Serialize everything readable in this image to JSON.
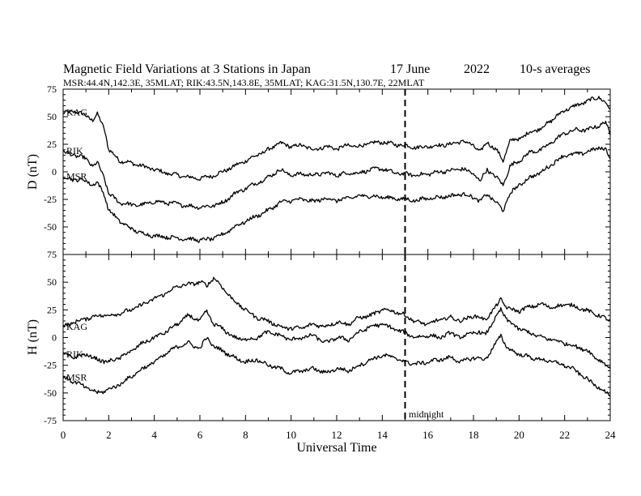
{
  "title": {
    "main": "Magnetic Field Variations at 3 Stations in Japan",
    "date": "17 June",
    "year": "2022",
    "avg": "10-s averages",
    "stations": "MSR:44.4N,142.3E, 35MLAT;  RIK:43.5N,143.8E, 35MLAT;  KAG:31.5N,130.7E, 22MLAT"
  },
  "chart_data": [
    {
      "type": "line",
      "ylabel": "D (nT)",
      "ylim": [
        -75,
        75
      ],
      "yticks": [
        75,
        50,
        25,
        0,
        -25,
        -50,
        -75
      ],
      "xlim": [
        0,
        24
      ],
      "series": [
        {
          "name": "KAG",
          "x": [
            0,
            0.5,
            1,
            1.3,
            1.5,
            1.8,
            2,
            2.5,
            3,
            3.5,
            4,
            4.5,
            5,
            5.5,
            6,
            6.5,
            7,
            7.5,
            8,
            8.5,
            9,
            9.5,
            10,
            10.5,
            11,
            11.5,
            12,
            12.5,
            13,
            13.5,
            14,
            14.5,
            15,
            15.5,
            16,
            16.5,
            17,
            17.5,
            18,
            18.3,
            18.6,
            19,
            19.3,
            19.6,
            20,
            20.5,
            21,
            21.5,
            22,
            22.5,
            23,
            23.5,
            23.8,
            24
          ],
          "values": [
            53,
            55,
            51,
            47,
            52,
            40,
            20,
            10,
            8,
            5,
            2,
            -1,
            -3,
            -5,
            -6,
            -4,
            0,
            5,
            10,
            15,
            20,
            26,
            23,
            24,
            20,
            23,
            21,
            24,
            23,
            26,
            27,
            25,
            24,
            22,
            23,
            24,
            25,
            28,
            24,
            18,
            27,
            20,
            10,
            28,
            30,
            36,
            40,
            48,
            56,
            60,
            64,
            68,
            62,
            57
          ]
        },
        {
          "name": "RIK",
          "x": [
            0,
            0.5,
            1,
            1.3,
            1.5,
            1.8,
            2,
            2.5,
            3,
            3.5,
            4,
            4.5,
            5,
            5.5,
            6,
            6.5,
            7,
            7.5,
            8,
            8.5,
            9,
            9.5,
            10,
            10.5,
            11,
            11.5,
            12,
            12.5,
            13,
            13.5,
            14,
            14.5,
            15,
            15.5,
            16,
            16.5,
            17,
            17.5,
            18,
            18.3,
            18.6,
            19,
            19.3,
            19.6,
            20,
            20.5,
            21,
            21.5,
            22,
            22.5,
            23,
            23.5,
            23.8,
            24
          ],
          "values": [
            18,
            15,
            12,
            5,
            8,
            -5,
            -20,
            -28,
            -30,
            -30,
            -27,
            -28,
            -29,
            -31,
            -32,
            -31,
            -28,
            -20,
            -15,
            -10,
            -5,
            2,
            -3,
            -2,
            -3,
            -1,
            -3,
            -1,
            -1,
            2,
            3,
            -1,
            -2,
            -3,
            -2,
            0,
            1,
            3,
            -2,
            -8,
            2,
            -5,
            -12,
            5,
            10,
            18,
            20,
            28,
            35,
            38,
            38,
            42,
            45,
            33
          ]
        },
        {
          "name": "MSR",
          "x": [
            0,
            0.5,
            1,
            1.3,
            1.5,
            1.8,
            2,
            2.5,
            3,
            3.5,
            4,
            4.5,
            5,
            5.5,
            6,
            6.5,
            7,
            7.5,
            8,
            8.5,
            9,
            9.5,
            10,
            10.5,
            11,
            11.5,
            12,
            12.5,
            13,
            13.5,
            14,
            14.5,
            15,
            15.5,
            16,
            16.5,
            17,
            17.5,
            18,
            18.3,
            18.6,
            19,
            19.3,
            19.6,
            20,
            20.5,
            21,
            21.5,
            22,
            22.5,
            23,
            23.5,
            23.8,
            24
          ],
          "values": [
            -5,
            -7,
            -8,
            -12,
            -10,
            -20,
            -35,
            -45,
            -52,
            -56,
            -58,
            -59,
            -60,
            -61,
            -62,
            -61,
            -57,
            -50,
            -45,
            -40,
            -35,
            -28,
            -26,
            -25,
            -27,
            -24,
            -26,
            -24,
            -22,
            -22,
            -23,
            -24,
            -25,
            -26,
            -24,
            -23,
            -22,
            -20,
            -23,
            -27,
            -20,
            -28,
            -35,
            -20,
            -12,
            -5,
            0,
            8,
            15,
            16,
            18,
            22,
            20,
            12
          ]
        }
      ]
    },
    {
      "type": "line",
      "ylabel": "H (nT)",
      "ylim": [
        -75,
        75
      ],
      "yticks": [
        75,
        50,
        25,
        0,
        -25,
        -50,
        -75
      ],
      "xlim": [
        0,
        24
      ],
      "xticks": [
        0,
        2,
        4,
        6,
        8,
        10,
        12,
        14,
        16,
        18,
        20,
        22,
        24
      ],
      "xlabel": "Universal Time",
      "annotation": "midnight",
      "midnight_x": 15,
      "series": [
        {
          "name": "KAG",
          "x": [
            0,
            0.5,
            1,
            1.5,
            2,
            2.5,
            3,
            3.5,
            4,
            4.5,
            5,
            5.5,
            6,
            6.3,
            6.6,
            7,
            7.5,
            8,
            8.5,
            9,
            9.5,
            10,
            10.5,
            11,
            11.5,
            12,
            12.5,
            13,
            13.5,
            14,
            14.5,
            15,
            15.5,
            16,
            16.5,
            17,
            17.5,
            18,
            18.5,
            19,
            19.2,
            19.5,
            20,
            20.5,
            21,
            21.5,
            22,
            22.5,
            23,
            23.5,
            24
          ],
          "values": [
            10,
            14,
            17,
            20,
            20,
            22,
            25,
            30,
            35,
            40,
            46,
            48,
            50,
            47,
            54,
            45,
            33,
            25,
            18,
            15,
            10,
            8,
            9,
            12,
            10,
            14,
            12,
            18,
            20,
            25,
            24,
            20,
            14,
            12,
            16,
            18,
            15,
            20,
            16,
            28,
            35,
            26,
            24,
            28,
            30,
            27,
            30,
            28,
            24,
            20,
            15
          ]
        },
        {
          "name": "RIK",
          "x": [
            0,
            0.5,
            1,
            1.5,
            2,
            2.5,
            3,
            3.5,
            4,
            4.5,
            5,
            5.5,
            6,
            6.3,
            6.6,
            7,
            7.5,
            8,
            8.5,
            9,
            9.5,
            10,
            10.5,
            11,
            11.5,
            12,
            12.5,
            13,
            13.5,
            14,
            14.5,
            15,
            15.5,
            16,
            16.5,
            17,
            17.5,
            18,
            18.5,
            19,
            19.2,
            19.5,
            20,
            20.5,
            21,
            21.5,
            22,
            22.5,
            23,
            23.5,
            24
          ],
          "values": [
            -15,
            -18,
            -15,
            -20,
            -22,
            -18,
            -12,
            -5,
            0,
            5,
            12,
            20,
            15,
            24,
            12,
            8,
            0,
            -2,
            0,
            5,
            2,
            -2,
            0,
            2,
            -5,
            0,
            -2,
            5,
            10,
            12,
            8,
            4,
            0,
            2,
            0,
            4,
            0,
            5,
            3,
            18,
            26,
            15,
            8,
            4,
            0,
            -2,
            -5,
            -8,
            -12,
            -20,
            -28
          ]
        },
        {
          "name": "MSR",
          "x": [
            0,
            0.5,
            1,
            1.5,
            2,
            2.5,
            3,
            3.5,
            4,
            4.5,
            5,
            5.5,
            6,
            6.3,
            6.6,
            7,
            7.5,
            8,
            8.5,
            9,
            9.5,
            10,
            10.5,
            11,
            11.5,
            12,
            12.5,
            13,
            13.5,
            14,
            14.5,
            15,
            15.5,
            16,
            16.5,
            17,
            17.5,
            18,
            18.5,
            19,
            19.2,
            19.5,
            20,
            20.5,
            21,
            21.5,
            22,
            22.5,
            23,
            23.5,
            24
          ],
          "values": [
            -36,
            -40,
            -45,
            -50,
            -47,
            -42,
            -35,
            -28,
            -22,
            -15,
            -8,
            -5,
            -10,
            0,
            -8,
            -12,
            -18,
            -22,
            -20,
            -25,
            -28,
            -32,
            -30,
            -28,
            -32,
            -28,
            -30,
            -25,
            -20,
            -16,
            -18,
            -22,
            -24,
            -22,
            -20,
            -18,
            -22,
            -18,
            -20,
            -5,
            2,
            -10,
            -15,
            -18,
            -20,
            -22,
            -25,
            -30,
            -38,
            -45,
            -52
          ]
        }
      ]
    }
  ]
}
